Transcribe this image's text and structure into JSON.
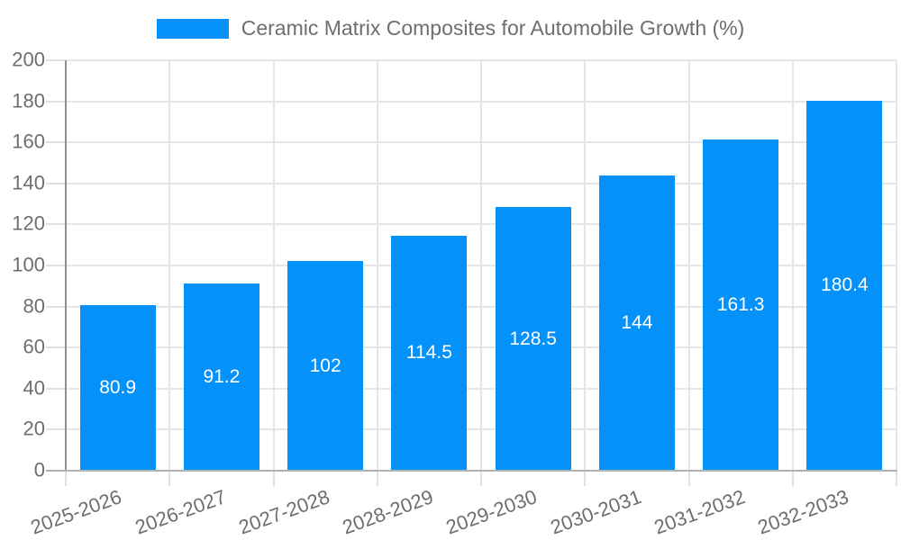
{
  "legend": {
    "series_label": "Ceramic Matrix Composites for Automobile Growth (%)"
  },
  "chart_data": {
    "type": "bar",
    "title": "Ceramic Matrix Composites for Automobile Growth (%)",
    "legend_position": "top",
    "grid": true,
    "categories": [
      "2025-2026",
      "2026-2027",
      "2027-2028",
      "2028-2029",
      "2029-2030",
      "2030-2031",
      "2031-2032",
      "2032-2033"
    ],
    "values": [
      80.9,
      91.2,
      102,
      114.5,
      128.5,
      144,
      161.3,
      180.4
    ],
    "value_labels": [
      "80.9",
      "91.2",
      "102",
      "114.5",
      "128.5",
      "144",
      "161.3",
      "180.4"
    ],
    "xlabel": "",
    "ylabel": "",
    "ylim": [
      0,
      200
    ],
    "yticks": [
      0,
      20,
      40,
      60,
      80,
      100,
      120,
      140,
      160,
      180,
      200
    ]
  },
  "colors": {
    "bar": "#0591fa",
    "value_label": "#ffffff",
    "grid": "#e6e6e6",
    "tick": "#e0e0e0",
    "y_axis_line": "#8e8e8e",
    "x_axis_line": "#b1b1b1",
    "tick_label": "#6e6e6e",
    "background": "#ffffff"
  }
}
